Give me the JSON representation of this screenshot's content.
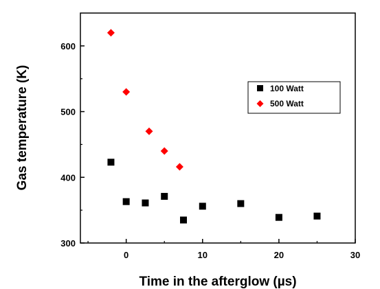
{
  "chart_data": {
    "type": "scatter",
    "xlabel": "Time in the afterglow (µs)",
    "ylabel": "Gas temperature (K)",
    "xlim": [
      -6,
      30
    ],
    "ylim": [
      300,
      650
    ],
    "x_ticks": [
      0,
      10,
      20,
      30
    ],
    "y_ticks": [
      300,
      400,
      500,
      600
    ],
    "legend_position": "upper-right",
    "series": [
      {
        "name": "100 Watt",
        "marker": "square",
        "color": "#000000",
        "points": [
          {
            "x": -2,
            "y": 423
          },
          {
            "x": 0,
            "y": 363
          },
          {
            "x": 2.5,
            "y": 361
          },
          {
            "x": 5,
            "y": 371
          },
          {
            "x": 7.5,
            "y": 335
          },
          {
            "x": 10,
            "y": 356
          },
          {
            "x": 15,
            "y": 360
          },
          {
            "x": 20,
            "y": 339
          },
          {
            "x": 25,
            "y": 341
          }
        ]
      },
      {
        "name": "500 Watt",
        "marker": "diamond",
        "color": "#ff0000",
        "points": [
          {
            "x": -2,
            "y": 620
          },
          {
            "x": 0,
            "y": 530
          },
          {
            "x": 3,
            "y": 470
          },
          {
            "x": 5,
            "y": 440
          },
          {
            "x": 7,
            "y": 416
          }
        ]
      }
    ]
  }
}
